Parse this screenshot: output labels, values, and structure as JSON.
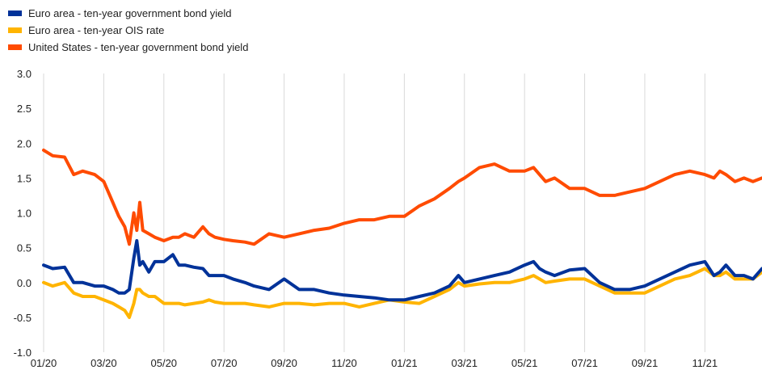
{
  "chart_data": {
    "type": "line",
    "title": "",
    "xlabel": "",
    "ylabel": "",
    "ylim": [
      -1.0,
      3.0
    ],
    "yticks": [
      "3.0",
      "2.5",
      "2.0",
      "1.5",
      "1.0",
      "0.5",
      "0.0",
      "-0.5",
      "-1.0"
    ],
    "xticks": [
      "01/20",
      "03/20",
      "05/20",
      "07/20",
      "09/20",
      "11/20",
      "01/21",
      "03/21",
      "05/21",
      "07/21",
      "09/21",
      "11/21"
    ],
    "x_range_months": [
      0,
      23.9
    ],
    "grid": "vertical",
    "legend_position": "top-left",
    "series": [
      {
        "name": "Euro area - ten-year government bond yield",
        "color": "#003299",
        "x": [
          0,
          0.3,
          0.7,
          1.0,
          1.3,
          1.7,
          2.0,
          2.3,
          2.5,
          2.7,
          2.85,
          3.0,
          3.1,
          3.2,
          3.3,
          3.5,
          3.7,
          4.0,
          4.3,
          4.5,
          4.7,
          5.0,
          5.3,
          5.5,
          5.7,
          6.0,
          6.3,
          6.7,
          7.0,
          7.5,
          8.0,
          8.5,
          9.0,
          9.5,
          10.0,
          10.5,
          11.0,
          11.5,
          12.0,
          12.5,
          13.0,
          13.5,
          13.8,
          14.0,
          14.5,
          15.0,
          15.5,
          16.0,
          16.3,
          16.5,
          16.7,
          17.0,
          17.5,
          18.0,
          18.5,
          19.0,
          19.5,
          20.0,
          20.5,
          21.0,
          21.5,
          22.0,
          22.3,
          22.5,
          22.7,
          23.0,
          23.3,
          23.6,
          23.9
        ],
        "y": [
          0.25,
          0.2,
          0.22,
          0.0,
          0.0,
          -0.05,
          -0.05,
          -0.1,
          -0.15,
          -0.15,
          -0.1,
          0.35,
          0.6,
          0.25,
          0.3,
          0.15,
          0.3,
          0.3,
          0.4,
          0.25,
          0.25,
          0.22,
          0.2,
          0.1,
          0.1,
          0.1,
          0.05,
          0.0,
          -0.05,
          -0.1,
          0.05,
          -0.1,
          -0.1,
          -0.15,
          -0.18,
          -0.2,
          -0.22,
          -0.25,
          -0.25,
          -0.2,
          -0.15,
          -0.05,
          0.1,
          0.0,
          0.05,
          0.1,
          0.15,
          0.25,
          0.3,
          0.2,
          0.15,
          0.1,
          0.18,
          0.2,
          0.0,
          -0.1,
          -0.1,
          -0.05,
          0.05,
          0.15,
          0.25,
          0.3,
          0.1,
          0.15,
          0.25,
          0.1,
          0.1,
          0.05,
          0.2
        ]
      },
      {
        "name": "Euro area - ten-year OIS rate",
        "color": "#FFB400",
        "x": [
          0,
          0.3,
          0.7,
          1.0,
          1.3,
          1.7,
          2.0,
          2.3,
          2.5,
          2.7,
          2.85,
          3.0,
          3.1,
          3.2,
          3.3,
          3.5,
          3.7,
          4.0,
          4.3,
          4.5,
          4.7,
          5.0,
          5.3,
          5.5,
          5.7,
          6.0,
          6.3,
          6.7,
          7.0,
          7.5,
          8.0,
          8.5,
          9.0,
          9.5,
          10.0,
          10.5,
          11.0,
          11.5,
          12.0,
          12.5,
          13.0,
          13.5,
          13.8,
          14.0,
          14.5,
          15.0,
          15.5,
          16.0,
          16.3,
          16.5,
          16.7,
          17.0,
          17.5,
          18.0,
          18.5,
          19.0,
          19.5,
          20.0,
          20.5,
          21.0,
          21.5,
          22.0,
          22.3,
          22.5,
          22.7,
          23.0,
          23.3,
          23.6,
          23.9
        ],
        "y": [
          0.0,
          -0.05,
          0.0,
          -0.15,
          -0.2,
          -0.2,
          -0.25,
          -0.3,
          -0.35,
          -0.4,
          -0.5,
          -0.3,
          -0.1,
          -0.1,
          -0.15,
          -0.2,
          -0.2,
          -0.3,
          -0.3,
          -0.3,
          -0.32,
          -0.3,
          -0.28,
          -0.25,
          -0.28,
          -0.3,
          -0.3,
          -0.3,
          -0.32,
          -0.35,
          -0.3,
          -0.3,
          -0.32,
          -0.3,
          -0.3,
          -0.35,
          -0.3,
          -0.25,
          -0.28,
          -0.3,
          -0.2,
          -0.1,
          0.0,
          -0.05,
          -0.02,
          0.0,
          0.0,
          0.05,
          0.1,
          0.05,
          0.0,
          0.02,
          0.05,
          0.05,
          -0.05,
          -0.15,
          -0.15,
          -0.15,
          -0.05,
          0.05,
          0.1,
          0.2,
          0.1,
          0.1,
          0.15,
          0.05,
          0.05,
          0.05,
          0.15
        ]
      },
      {
        "name": "United States - ten-year government bond yield",
        "color": "#FF4B00",
        "x": [
          0,
          0.3,
          0.7,
          1.0,
          1.3,
          1.7,
          2.0,
          2.3,
          2.5,
          2.7,
          2.85,
          3.0,
          3.1,
          3.2,
          3.3,
          3.5,
          3.7,
          4.0,
          4.3,
          4.5,
          4.7,
          5.0,
          5.3,
          5.5,
          5.7,
          6.0,
          6.3,
          6.7,
          7.0,
          7.5,
          8.0,
          8.5,
          9.0,
          9.5,
          10.0,
          10.5,
          11.0,
          11.5,
          12.0,
          12.5,
          13.0,
          13.5,
          13.8,
          14.0,
          14.5,
          15.0,
          15.5,
          16.0,
          16.3,
          16.5,
          16.7,
          17.0,
          17.5,
          18.0,
          18.5,
          19.0,
          19.5,
          20.0,
          20.5,
          21.0,
          21.5,
          22.0,
          22.3,
          22.5,
          22.7,
          23.0,
          23.3,
          23.6,
          23.9
        ],
        "y": [
          1.9,
          1.82,
          1.8,
          1.55,
          1.6,
          1.55,
          1.45,
          1.15,
          0.95,
          0.8,
          0.55,
          1.0,
          0.75,
          1.15,
          0.75,
          0.7,
          0.65,
          0.6,
          0.65,
          0.65,
          0.7,
          0.65,
          0.8,
          0.7,
          0.65,
          0.62,
          0.6,
          0.58,
          0.55,
          0.7,
          0.65,
          0.7,
          0.75,
          0.78,
          0.85,
          0.9,
          0.9,
          0.95,
          0.95,
          1.1,
          1.2,
          1.35,
          1.45,
          1.5,
          1.65,
          1.7,
          1.6,
          1.6,
          1.65,
          1.55,
          1.45,
          1.5,
          1.35,
          1.35,
          1.25,
          1.25,
          1.3,
          1.35,
          1.45,
          1.55,
          1.6,
          1.55,
          1.5,
          1.6,
          1.55,
          1.45,
          1.5,
          1.45,
          1.5
        ]
      }
    ]
  }
}
